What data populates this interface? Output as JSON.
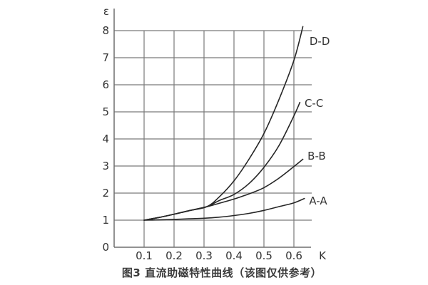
{
  "chart_data": {
    "type": "line",
    "title": "",
    "caption": "图3 直流助磁特性曲线（该图仅供参考）",
    "xlabel": "K",
    "ylabel": "ε",
    "x_ticks": [
      "0.1",
      "0.2",
      "0.3",
      "0.4",
      "0.5",
      "0.6"
    ],
    "y_ticks": [
      "0",
      "1",
      "2",
      "3",
      "4",
      "5",
      "6",
      "7",
      "8"
    ],
    "xlim": [
      0,
      0.66
    ],
    "ylim": [
      0,
      8.8
    ],
    "grid": true,
    "legend_position": "inline-right",
    "colors": {
      "curve": "#262626",
      "grid": "#7a7a7a",
      "axis": "#6f6f6f",
      "text": "#333333"
    },
    "series": [
      {
        "name": "A-A",
        "label_at": [
          0.681,
          1.71
        ],
        "points": [
          [
            0.1,
            1.0
          ],
          [
            0.15,
            1.01
          ],
          [
            0.2,
            1.03
          ],
          [
            0.25,
            1.05
          ],
          [
            0.3,
            1.07
          ],
          [
            0.35,
            1.11
          ],
          [
            0.4,
            1.17
          ],
          [
            0.45,
            1.25
          ],
          [
            0.5,
            1.36
          ],
          [
            0.55,
            1.5
          ],
          [
            0.6,
            1.64
          ],
          [
            0.635,
            1.8
          ]
        ]
      },
      {
        "name": "B-B",
        "label_at": [
          0.676,
          3.37
        ],
        "points": [
          [
            0.1,
            1.0
          ],
          [
            0.15,
            1.1
          ],
          [
            0.2,
            1.22
          ],
          [
            0.25,
            1.35
          ],
          [
            0.31,
            1.5
          ],
          [
            0.35,
            1.62
          ],
          [
            0.4,
            1.78
          ],
          [
            0.45,
            1.97
          ],
          [
            0.5,
            2.2
          ],
          [
            0.55,
            2.55
          ],
          [
            0.6,
            2.98
          ],
          [
            0.63,
            3.25
          ]
        ]
      },
      {
        "name": "C-C",
        "label_at": [
          0.667,
          5.32
        ],
        "points": [
          [
            0.1,
            1.0
          ],
          [
            0.15,
            1.1
          ],
          [
            0.2,
            1.22
          ],
          [
            0.25,
            1.35
          ],
          [
            0.31,
            1.5
          ],
          [
            0.35,
            1.72
          ],
          [
            0.4,
            1.95
          ],
          [
            0.45,
            2.35
          ],
          [
            0.5,
            2.95
          ],
          [
            0.55,
            3.75
          ],
          [
            0.6,
            4.85
          ],
          [
            0.62,
            5.35
          ]
        ]
      },
      {
        "name": "D-D",
        "label_at": [
          0.686,
          7.6
        ],
        "points": [
          [
            0.1,
            1.0
          ],
          [
            0.15,
            1.1
          ],
          [
            0.2,
            1.22
          ],
          [
            0.25,
            1.35
          ],
          [
            0.31,
            1.5
          ],
          [
            0.35,
            1.85
          ],
          [
            0.4,
            2.45
          ],
          [
            0.45,
            3.25
          ],
          [
            0.5,
            4.2
          ],
          [
            0.55,
            5.45
          ],
          [
            0.6,
            6.9
          ],
          [
            0.63,
            8.15
          ]
        ]
      }
    ]
  }
}
